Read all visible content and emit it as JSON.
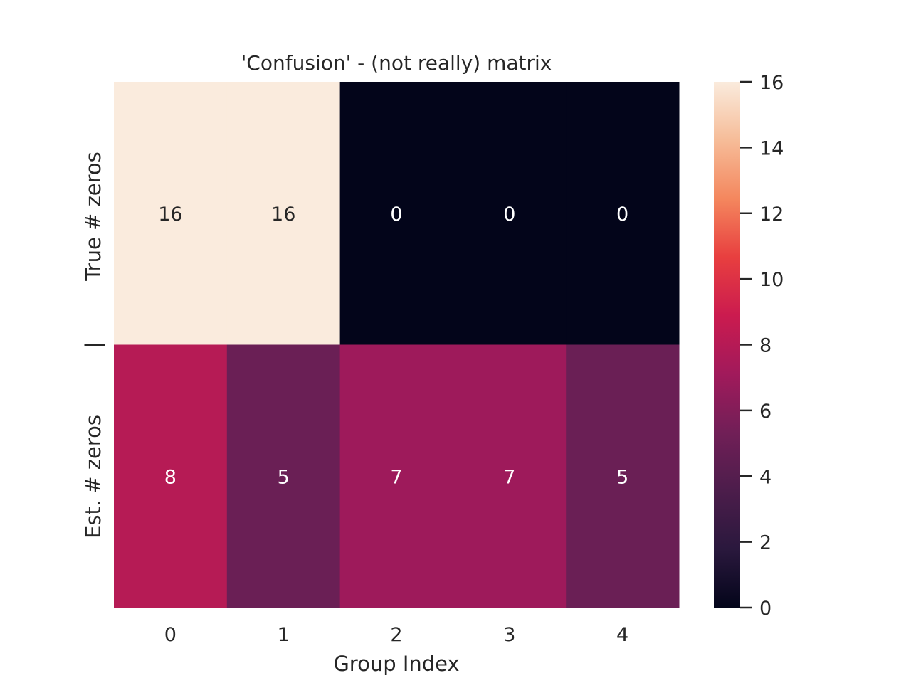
{
  "chart_data": {
    "type": "heatmap",
    "title": "'Confusion' - (not really) matrix",
    "xlabel": "Group Index",
    "ylabel_rows": [
      "True # zeros",
      "Est. # zeros"
    ],
    "row_separator_label": "|",
    "x_tick_labels": [
      "0",
      "1",
      "2",
      "3",
      "4"
    ],
    "values": [
      [
        16,
        16,
        0,
        0,
        0
      ],
      [
        8,
        5,
        7,
        7,
        5
      ]
    ],
    "colorbar": {
      "vmin": 0,
      "vmax": 16,
      "ticks": [
        0,
        2,
        4,
        6,
        8,
        10,
        12,
        14,
        16
      ],
      "colormap": "rocket",
      "stops": [
        "#03051a",
        "#2a183d",
        "#4c1d4b",
        "#711f57",
        "#a11a5b",
        "#cb1b4f",
        "#e83f3f",
        "#f4875e",
        "#f6bc98",
        "#faebdd"
      ]
    }
  }
}
